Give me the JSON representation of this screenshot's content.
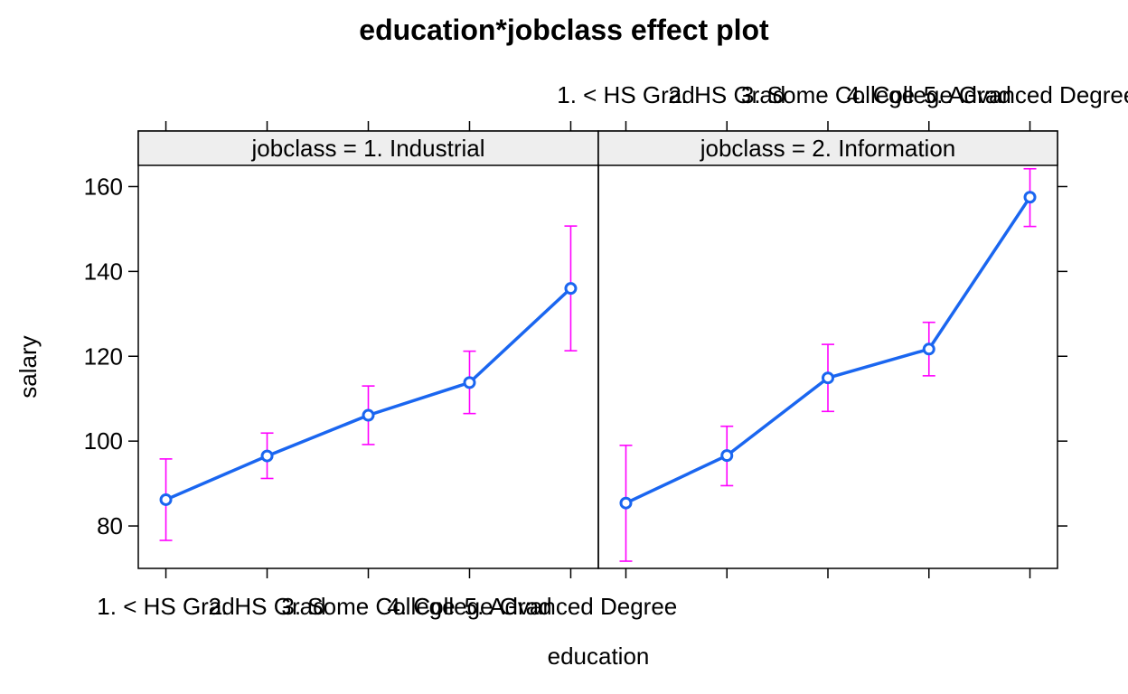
{
  "chart_data": {
    "type": "line",
    "title": "education*jobclass effect plot",
    "xlabel": "education",
    "ylabel": "salary",
    "categories": [
      "1. < HS Grad",
      "2. HS Grad",
      "3. Some College",
      "4. College Grad",
      "5. Advanced Degree"
    ],
    "ylim": [
      70,
      165
    ],
    "yticks": [
      80,
      100,
      120,
      140,
      160
    ],
    "grid": false,
    "panels": [
      {
        "strip_label": "jobclass = 1. Industrial",
        "values": [
          86.2,
          96.5,
          106.1,
          113.8,
          136.0
        ],
        "lower": [
          76.6,
          91.2,
          99.2,
          106.5,
          121.3
        ],
        "upper": [
          95.8,
          101.9,
          113.0,
          121.2,
          150.7
        ]
      },
      {
        "strip_label": "jobclass = 2. Information",
        "values": [
          85.4,
          96.6,
          114.9,
          121.7,
          157.5
        ],
        "lower": [
          71.7,
          89.5,
          107.0,
          115.4,
          150.6
        ],
        "upper": [
          99.0,
          103.5,
          122.8,
          128.0,
          164.2
        ]
      }
    ],
    "colors": {
      "line": "#1a66f0",
      "error_bar": "#ff00ff",
      "strip": "#eeeeee"
    }
  }
}
